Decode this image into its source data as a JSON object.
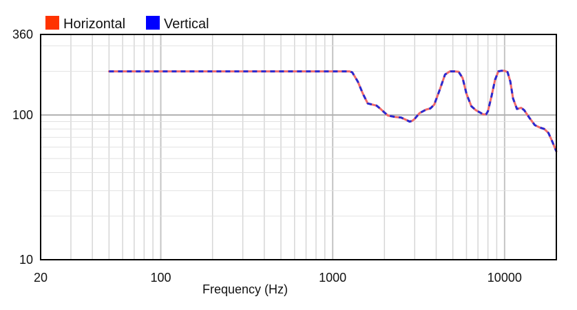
{
  "chart_data": {
    "type": "line",
    "title": "",
    "xlabel": "Frequency (Hz)",
    "ylabel": "",
    "xscale": "log",
    "yscale": "log",
    "xlim": [
      20,
      20000
    ],
    "ylim": [
      10,
      360
    ],
    "xticks": [
      20,
      100,
      1000,
      10000
    ],
    "xtick_labels": [
      "20",
      "100",
      "1000",
      "10000"
    ],
    "yticks": [
      10,
      100,
      360
    ],
    "ytick_labels": [
      "10",
      "100",
      "360"
    ],
    "grid": true,
    "legend": "top-left",
    "series": [
      {
        "name": "Horizontal",
        "color": "#ff3300",
        "line_color": "#f06a6a",
        "style": "solid",
        "x": [
          50,
          100,
          500,
          1250,
          1300,
          1400,
          1500,
          1600,
          1800,
          1900,
          2000,
          2100,
          2300,
          2500,
          2700,
          2800,
          2900,
          3000,
          3200,
          3500,
          3700,
          3900,
          4200,
          4500,
          4800,
          5100,
          5400,
          5700,
          6000,
          6400,
          6800,
          7200,
          7500,
          7800,
          8000,
          8400,
          8800,
          9200,
          9600,
          10000,
          10400,
          10800,
          11200,
          11800,
          12500,
          13000,
          14000,
          15000,
          16000,
          17000,
          18000,
          19000,
          20000
        ],
        "y": [
          200,
          200,
          200,
          200,
          197,
          170,
          140,
          120,
          116,
          110,
          104,
          99,
          97,
          96,
          92,
          90,
          91,
          94,
          103,
          109,
          111,
          118,
          150,
          190,
          200,
          200,
          199,
          180,
          140,
          115,
          108,
          104,
          101,
          101,
          106,
          135,
          175,
          200,
          202,
          202,
          198,
          170,
          130,
          110,
          112,
          108,
          95,
          85,
          82,
          80,
          75,
          65,
          56
        ]
      },
      {
        "name": "Vertical",
        "color": "#0000ff",
        "line_color": "#2a2ad0",
        "style": "dashed",
        "x": [
          50,
          100,
          500,
          1250,
          1300,
          1400,
          1500,
          1600,
          1800,
          1900,
          2000,
          2100,
          2300,
          2500,
          2700,
          2800,
          2900,
          3000,
          3200,
          3500,
          3700,
          3900,
          4200,
          4500,
          4800,
          5100,
          5400,
          5700,
          6000,
          6400,
          6800,
          7200,
          7500,
          7800,
          8000,
          8400,
          8800,
          9200,
          9600,
          10000,
          10400,
          10800,
          11200,
          11800,
          12500,
          13000,
          14000,
          15000,
          16000,
          17000,
          18000,
          19000,
          20000
        ],
        "y": [
          200,
          200,
          200,
          200,
          197,
          170,
          140,
          120,
          116,
          110,
          104,
          99,
          97,
          96,
          92,
          90,
          91,
          94,
          103,
          109,
          111,
          118,
          150,
          190,
          200,
          200,
          199,
          180,
          140,
          115,
          108,
          104,
          101,
          101,
          106,
          135,
          175,
          200,
          202,
          202,
          198,
          170,
          130,
          110,
          112,
          108,
          95,
          85,
          82,
          80,
          75,
          65,
          56
        ]
      }
    ]
  }
}
